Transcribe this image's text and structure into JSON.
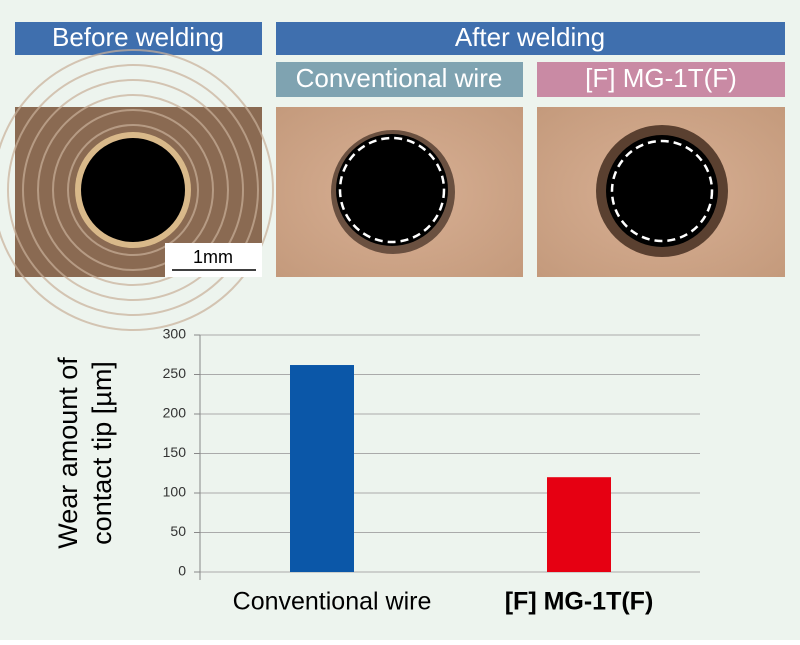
{
  "header": {
    "before": "Before welding",
    "after": "After welding",
    "after_left": "Conventional wire",
    "after_right": "[F] MG-1T(F)",
    "scale": "1mm"
  },
  "chart_data": {
    "type": "bar",
    "y_label": [
      "Wear amount of",
      "contact tip [µm]"
    ],
    "categories": [
      "Conventional wire",
      "[F] MG-1T(F)"
    ],
    "values": [
      262,
      120
    ],
    "colors": [
      "#0b57a8",
      "#e60012"
    ],
    "ylim": [
      0,
      300
    ],
    "yticks": [
      0,
      50,
      100,
      150,
      200,
      250,
      300
    ],
    "grid": true
  }
}
